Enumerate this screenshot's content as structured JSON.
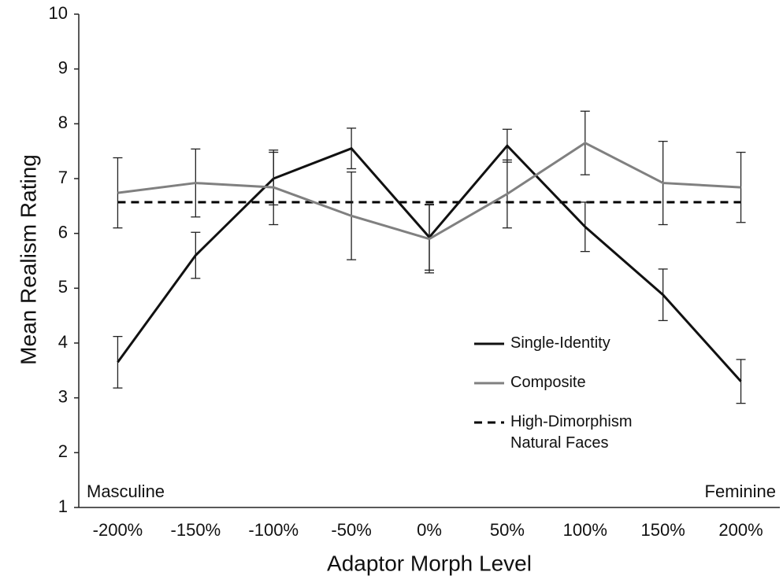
{
  "chart_data": {
    "type": "line",
    "x_label": "Adaptor Morph Level",
    "y_label": "Mean Realism Rating",
    "categories": [
      "-200%",
      "-150%",
      "-100%",
      "-50%",
      "0%",
      "50%",
      "100%",
      "150%",
      "200%"
    ],
    "ylim": [
      1,
      10
    ],
    "yticks": [
      1,
      2,
      3,
      4,
      5,
      6,
      7,
      8,
      9,
      10
    ],
    "series": [
      {
        "name": "Single-Identity",
        "color": "#111111",
        "values": [
          3.65,
          5.6,
          7.0,
          7.55,
          5.93,
          7.6,
          6.12,
          4.88,
          3.3
        ],
        "errors": [
          0.47,
          0.42,
          0.48,
          0.37,
          0.6,
          0.3,
          0.45,
          0.47,
          0.4
        ]
      },
      {
        "name": "Composite",
        "color": "#808080",
        "values": [
          6.74,
          6.92,
          6.84,
          6.32,
          5.9,
          6.72,
          7.65,
          6.92,
          6.84
        ],
        "errors": [
          0.64,
          0.62,
          0.68,
          0.8,
          0.62,
          0.62,
          0.58,
          0.76,
          0.64
        ]
      }
    ],
    "reference_line": {
      "name": "High-Dimorphism\nNatural Faces",
      "value": 6.57,
      "color": "#000000",
      "style": "dashed"
    },
    "annotations": [
      "Masculine",
      "Feminine"
    ]
  }
}
